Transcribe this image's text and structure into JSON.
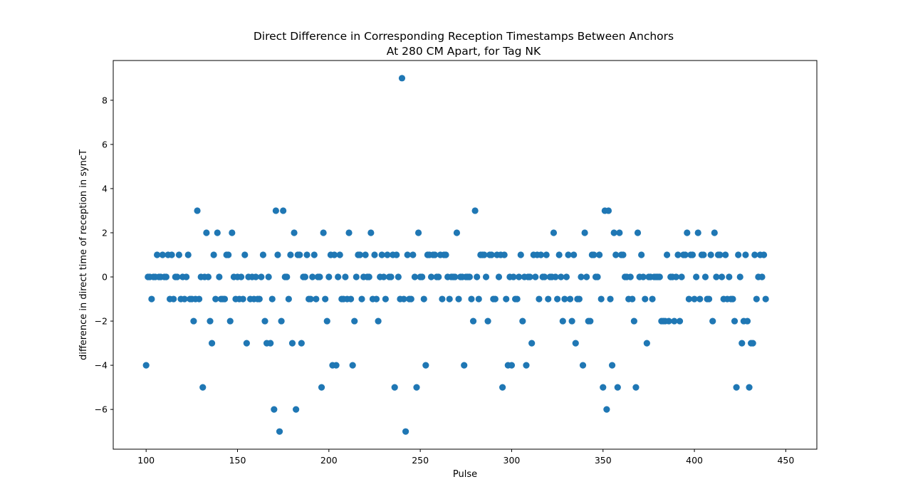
{
  "chart_data": {
    "type": "scatter",
    "title_lines": [
      "Direct Difference in Corresponding Reception Timestamps Between Anchors",
      "At 280 CM Apart, for Tag NK"
    ],
    "xlabel": "Pulse",
    "ylabel": "difference in direct time of reception in syncT",
    "xlim": [
      82,
      467
    ],
    "ylim": [
      -7.8,
      9.8
    ],
    "xticks": [
      100,
      150,
      200,
      250,
      300,
      350,
      400,
      450
    ],
    "yticks": [
      -6,
      -4,
      -2,
      0,
      2,
      4,
      6,
      8
    ],
    "grid": false,
    "marker_color": "#1f77b4",
    "x_start": 100,
    "y": [
      -4,
      0,
      0,
      -1,
      0,
      0,
      1,
      0,
      0,
      1,
      0,
      0,
      1,
      -1,
      1,
      -1,
      0,
      0,
      1,
      -1,
      0,
      -1,
      0,
      1,
      -1,
      -1,
      -2,
      -1,
      3,
      -1,
      0,
      -5,
      0,
      2,
      0,
      -2,
      -3,
      1,
      -1,
      2,
      0,
      -1,
      -1,
      -1,
      1,
      1,
      -2,
      2,
      0,
      -1,
      0,
      -1,
      0,
      -1,
      1,
      -3,
      0,
      -1,
      0,
      -1,
      0,
      -1,
      -1,
      0,
      1,
      -2,
      -3,
      0,
      -3,
      -1,
      -6,
      3,
      1,
      -7,
      -2,
      3,
      0,
      0,
      -1,
      1,
      -3,
      2,
      -6,
      1,
      1,
      -3,
      0,
      0,
      1,
      -1,
      -1,
      0,
      1,
      -1,
      0,
      0,
      -5,
      2,
      -1,
      -2,
      0,
      1,
      -4,
      1,
      -4,
      0,
      1,
      -1,
      -1,
      0,
      -1,
      2,
      -1,
      -4,
      -2,
      0,
      1,
      1,
      -1,
      0,
      1,
      0,
      0,
      2,
      -1,
      1,
      -1,
      -2,
      0,
      1,
      0,
      -1,
      1,
      0,
      0,
      1,
      -5,
      1,
      0,
      -1,
      9,
      -1,
      -7,
      1,
      -1,
      -1,
      1,
      0,
      -5,
      2,
      0,
      0,
      -1,
      -4,
      1,
      1,
      0,
      1,
      1,
      0,
      0,
      1,
      -1,
      1,
      1,
      0,
      -1,
      0,
      0,
      0,
      2,
      -1,
      0,
      0,
      -4,
      0,
      0,
      0,
      -1,
      -2,
      3,
      0,
      -1,
      1,
      1,
      1,
      0,
      -2,
      1,
      1,
      -1,
      -1,
      1,
      0,
      1,
      -5,
      1,
      -1,
      -4,
      0,
      -4,
      0,
      -1,
      -1,
      0,
      1,
      -2,
      0,
      -4,
      0,
      0,
      -3,
      1,
      0,
      1,
      -1,
      1,
      0,
      0,
      1,
      -1,
      0,
      0,
      2,
      0,
      -1,
      1,
      0,
      -2,
      -1,
      0,
      1,
      -1,
      -2,
      1,
      -3,
      -1,
      -1,
      0,
      -4,
      2,
      0,
      -2,
      -2,
      1,
      1,
      0,
      0,
      1,
      -1,
      -5,
      3,
      -6,
      3,
      -1,
      -4,
      2,
      1,
      -5,
      2,
      1,
      1,
      0,
      0,
      -1,
      0,
      -1,
      -2,
      -5,
      2,
      0,
      1,
      0,
      -1,
      -3,
      0,
      0,
      -1,
      0,
      0,
      0,
      0,
      -2,
      -2,
      -2,
      1,
      -2,
      0,
      0,
      -2,
      0,
      1,
      -2,
      0,
      1,
      1,
      2,
      -1,
      1,
      1,
      -1,
      0,
      2,
      -1,
      1,
      1,
      0,
      -1,
      -1,
      1,
      -2,
      2,
      0,
      1,
      1,
      0,
      -1,
      1,
      -1,
      0,
      -1,
      -1,
      -2,
      -5,
      1,
      0,
      -3,
      -2,
      1,
      -2,
      -5,
      -3,
      -3,
      1,
      -1,
      0,
      1,
      0,
      1,
      -1
    ]
  }
}
